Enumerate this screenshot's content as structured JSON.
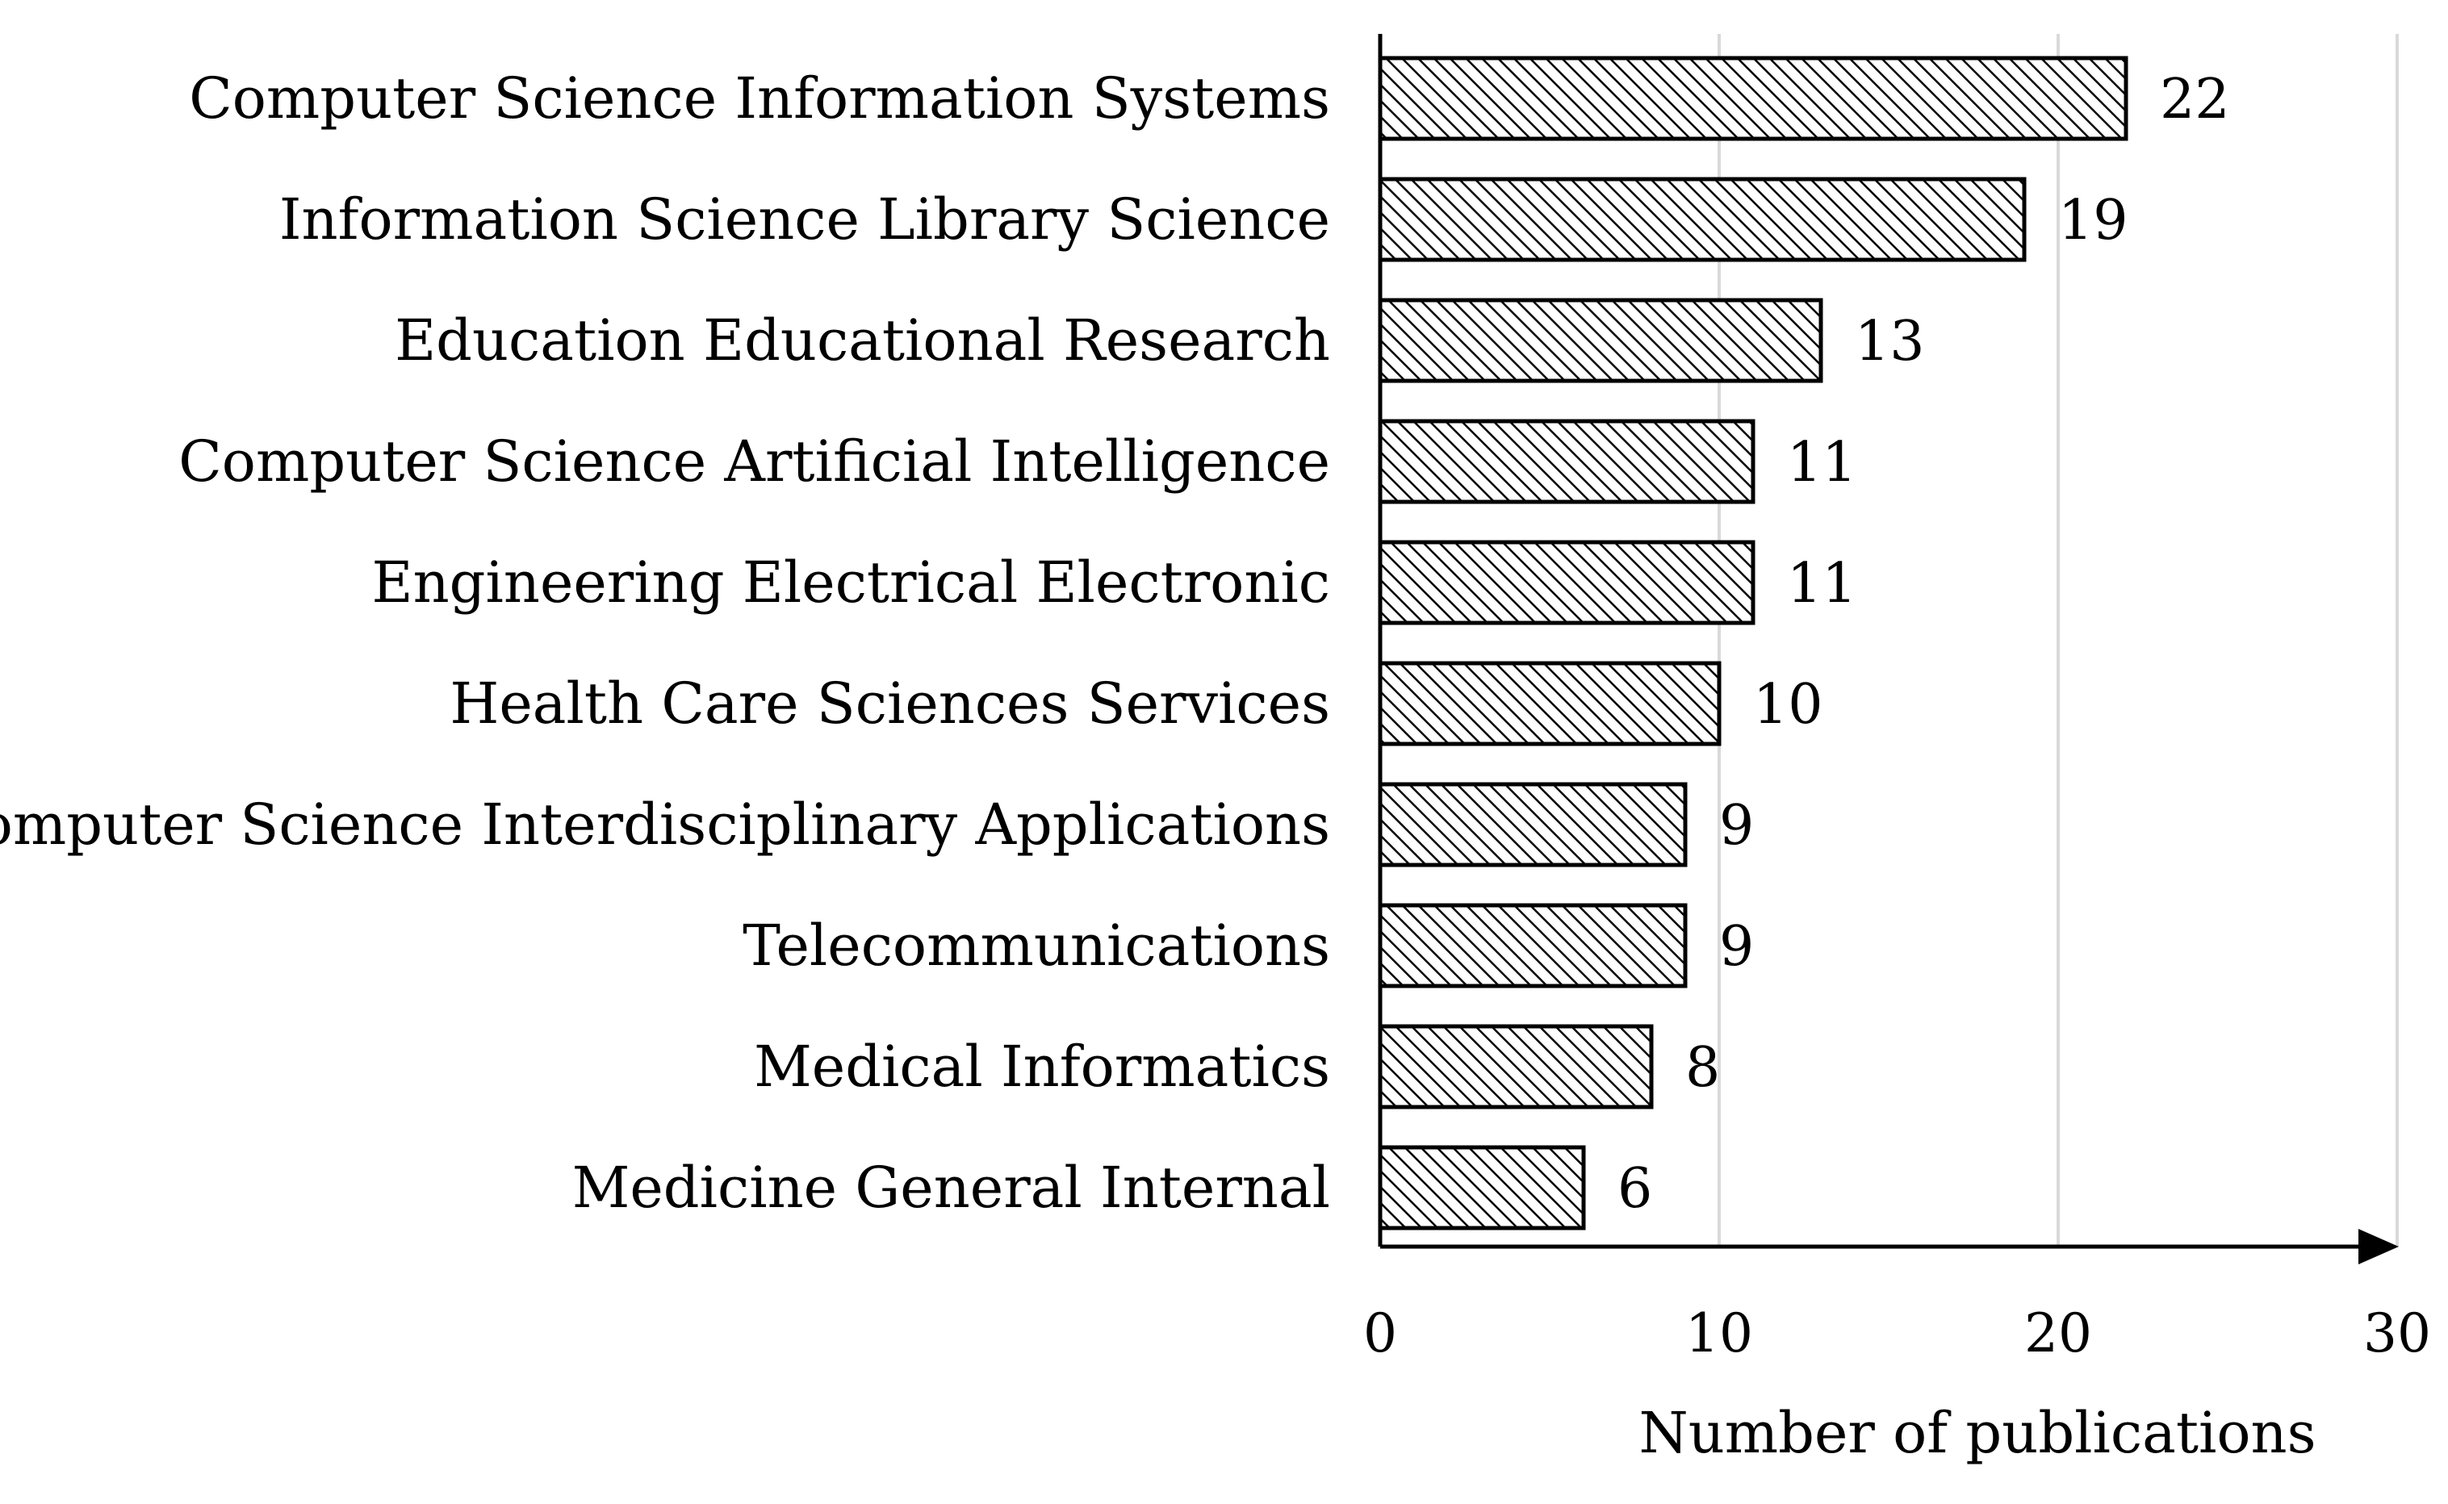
{
  "chart_data": {
    "type": "bar",
    "orientation": "horizontal",
    "categories": [
      "Computer Science Information Systems",
      "Information Science Library Science",
      "Education Educational Research",
      "Computer Science Artificial Intelligence",
      "Engineering Electrical Electronic",
      "Health Care Sciences Services",
      "Computer Science Interdisciplinary Applications",
      "Telecommunications",
      "Medical Informatics",
      "Medicine General Internal"
    ],
    "values": [
      22,
      19,
      13,
      11,
      11,
      10,
      9,
      9,
      8,
      6
    ],
    "value_labels": [
      "22",
      "19",
      "13",
      "11",
      "11",
      "10",
      "9",
      "9",
      "8",
      "6"
    ],
    "xlabel": "Number of publications",
    "ylabel": "",
    "xlim": [
      0,
      30
    ],
    "xticks": [
      "0",
      "10",
      "20",
      "30"
    ],
    "grid": "vertical",
    "fill": "diagonal hatch",
    "colors": {
      "bar_stroke": "#000000",
      "hatch": "#000000",
      "grid": "#d9d9d9",
      "background": "#ffffff"
    }
  }
}
